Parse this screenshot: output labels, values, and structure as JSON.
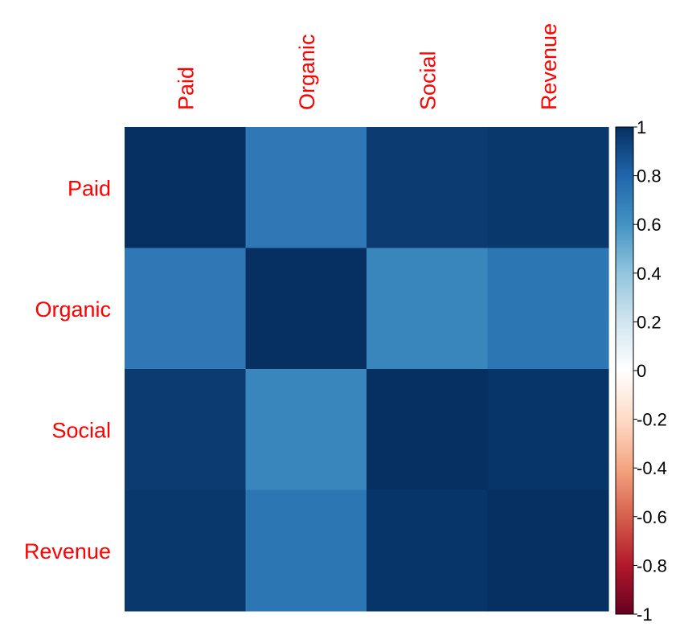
{
  "chart_data": {
    "type": "heatmap",
    "rows": [
      "Paid",
      "Organic",
      "Social",
      "Revenue"
    ],
    "columns": [
      "Paid",
      "Organic",
      "Social",
      "Revenue"
    ],
    "values": [
      [
        1.0,
        0.72,
        0.96,
        0.97
      ],
      [
        0.72,
        1.0,
        0.66,
        0.73
      ],
      [
        0.96,
        0.66,
        1.0,
        0.98
      ],
      [
        0.97,
        0.73,
        0.98,
        1.0
      ]
    ],
    "color_scale": {
      "range": [
        -1,
        1
      ],
      "ticks": [
        "1",
        "0.8",
        "0.6",
        "0.4",
        "0.2",
        "0",
        "-0.2",
        "-0.4",
        "-0.6",
        "-0.8",
        "-1"
      ],
      "tick_values": [
        1,
        0.8,
        0.6,
        0.4,
        0.2,
        0,
        -0.2,
        -0.4,
        -0.6,
        -0.8,
        -1
      ],
      "stops": [
        {
          "v": -1.0,
          "color": "#67001F"
        },
        {
          "v": -0.8,
          "color": "#B2182B"
        },
        {
          "v": -0.6,
          "color": "#D6604D"
        },
        {
          "v": -0.4,
          "color": "#F4A582"
        },
        {
          "v": -0.2,
          "color": "#FDDBC7"
        },
        {
          "v": 0.0,
          "color": "#FFFFFF"
        },
        {
          "v": 0.2,
          "color": "#D1E5F0"
        },
        {
          "v": 0.4,
          "color": "#92C5DE"
        },
        {
          "v": 0.6,
          "color": "#4393C3"
        },
        {
          "v": 0.8,
          "color": "#2166AC"
        },
        {
          "v": 1.0,
          "color": "#053061"
        }
      ]
    },
    "label_color": "#FF0000",
    "tick_color": "#000000",
    "legend_placement": "right"
  }
}
